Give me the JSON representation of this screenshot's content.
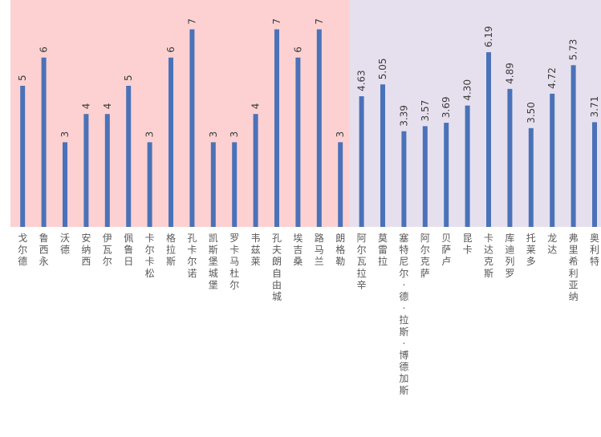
{
  "chart_data": {
    "type": "bar",
    "title": "",
    "xlabel": "",
    "ylabel": "",
    "categories": [
      "戈尔德",
      "鲁西永",
      "沃德",
      "安纳西",
      "伊瓦尔",
      "佩鲁日",
      "卡尔卡松",
      "格拉斯",
      "孔卡尔诺",
      "凯斯堡城堡",
      "罗卡马杜尔",
      "韦兹莱",
      "孔夫朗自由城",
      "埃吉桑",
      "路马兰",
      "朗格勒",
      "阿尔瓦拉辛",
      "莫雷拉",
      "塞特尼尔·德·拉斯·博德加斯",
      "阿尔克萨",
      "贝萨卢",
      "昆卡",
      "卡达克斯",
      "库迪列罗",
      "托莱多",
      "龙达",
      "弗里希利亚纳",
      "奥利特"
    ],
    "values": [
      5,
      6,
      3,
      4,
      4,
      5,
      3,
      6,
      7,
      3,
      3,
      4,
      7,
      6,
      7,
      3,
      4.63,
      5.05,
      3.39,
      3.57,
      3.69,
      4.3,
      6.19,
      4.89,
      3.5,
      4.72,
      5.73,
      3.71
    ],
    "value_labels": [
      "5",
      "6",
      "3",
      "4",
      "4",
      "5",
      "3",
      "6",
      "7",
      "3",
      "3",
      "4",
      "7",
      "6",
      "7",
      "3",
      "4.63",
      "5.05",
      "3.39",
      "3.57",
      "3.69",
      "4.30",
      "6.19",
      "4.89",
      "3.50",
      "4.72",
      "5.73",
      "3.71"
    ],
    "ylim": [
      0,
      8
    ],
    "grid": false,
    "legend": "none",
    "colors": {
      "bar": "#4a72b8",
      "group_a_bg": "#fdd1d1",
      "group_b_bg": "#e6e0ee",
      "value_text": "#3c3c3c",
      "category_text": "#595959"
    },
    "groups": [
      {
        "start": 0,
        "end": 15,
        "color": "#fdd1d1"
      },
      {
        "start": 16,
        "end": 27,
        "color": "#e6e0ee"
      }
    ]
  }
}
